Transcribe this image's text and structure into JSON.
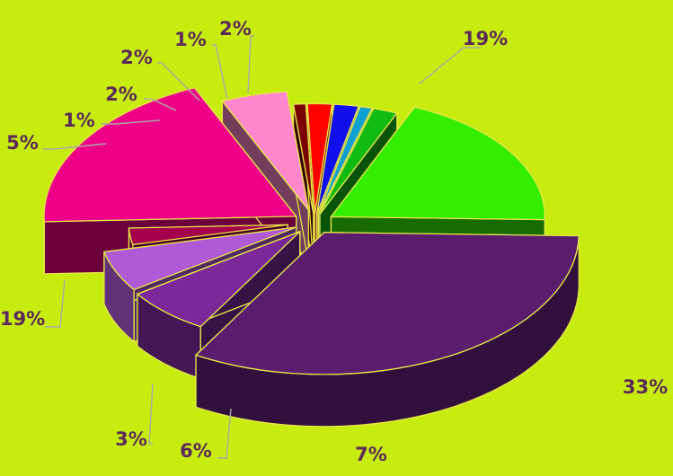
{
  "colors": {
    "background": "#c8ec10",
    "edge": "#e6e64a",
    "leader": "#a9a9a9",
    "label": "#5a2a5a"
  },
  "chart_data": {
    "type": "pie",
    "style": "3d-exploded",
    "title": "",
    "legend": "none",
    "slices": [
      {
        "value": 19,
        "label": "19%",
        "color": "#33ee00"
      },
      {
        "value": 33,
        "label": "33%",
        "color": "#5a1d6e"
      },
      {
        "value": 7,
        "label": "7%",
        "color": "#7b2898"
      },
      {
        "value": 6,
        "label": "6%",
        "color": "#b05ad6"
      },
      {
        "value": 3,
        "label": "3%",
        "color": "#a4004e"
      },
      {
        "value": 19,
        "label": "19%",
        "color": "#ee0088"
      },
      {
        "value": 5,
        "label": "5%",
        "color": "#ff88cc"
      },
      {
        "value": 1,
        "label": "1%",
        "color": "#7a0000"
      },
      {
        "value": 2,
        "label": "2%",
        "color": "#ff0000"
      },
      {
        "value": 2,
        "label": "2%",
        "color": "#1010ee"
      },
      {
        "value": 1,
        "label": "1%",
        "color": "#10a0d0"
      },
      {
        "value": 2,
        "label": "2%",
        "color": "#11bb11"
      }
    ]
  }
}
